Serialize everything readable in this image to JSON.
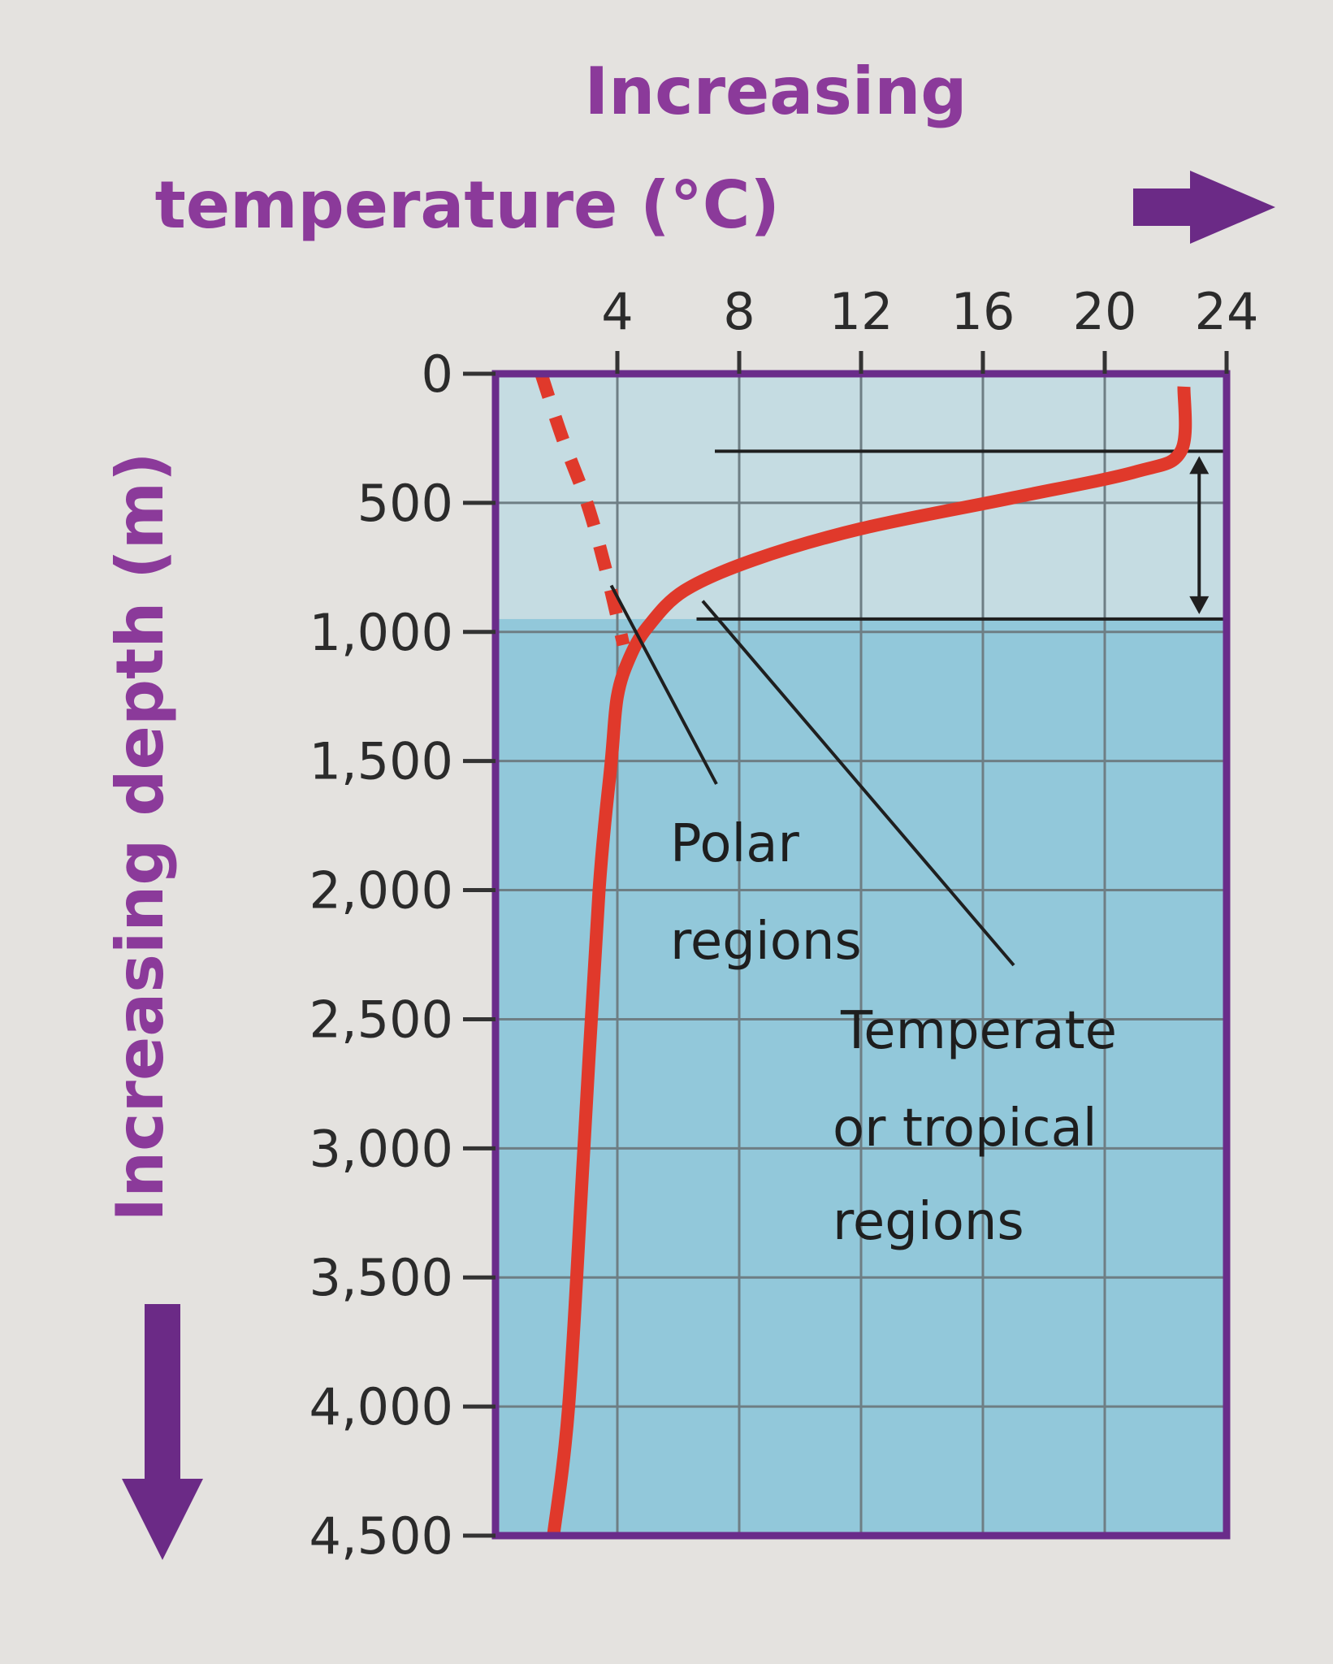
{
  "chart_data": {
    "type": "line",
    "title": "",
    "xlabel_lines": [
      "Increasing",
      "temperature (°C)"
    ],
    "ylabel": "Increasing depth (m)",
    "x_axis_position": "top",
    "y_axis_inverted": true,
    "x_ticks": [
      4,
      8,
      12,
      16,
      20,
      24
    ],
    "x_tick_labels": [
      "4",
      "8",
      "12",
      "16",
      "20",
      "24"
    ],
    "y_ticks": [
      0,
      500,
      1000,
      1500,
      2000,
      2500,
      3000,
      3500,
      4000,
      4500
    ],
    "y_tick_labels": [
      "0",
      "500",
      "1,000",
      "1,500",
      "2,000",
      "2,500",
      "3,000",
      "3,500",
      "4,000",
      "4,500"
    ],
    "xlim": [
      0,
      24
    ],
    "ylim": [
      0,
      4500
    ],
    "grid": true,
    "series": [
      {
        "label_lines": [
          "Temperate",
          "or tropical",
          "regions"
        ],
        "style": "solid",
        "x": [
          22.6,
          22.5,
          21.0,
          17.0,
          12.0,
          8.5,
          6.2,
          5.0,
          4.4,
          4.0,
          3.8,
          3.4,
          2.9,
          2.4,
          1.9
        ],
        "y": [
          50,
          300,
          380,
          480,
          600,
          720,
          840,
          980,
          1100,
          1250,
          1500,
          2000,
          3000,
          4000,
          4500
        ]
      },
      {
        "label_lines": [
          "Polar",
          "regions"
        ],
        "style": "dashed",
        "x": [
          1.5,
          2.2,
          3.0,
          3.6,
          4.2
        ],
        "y": [
          0,
          250,
          500,
          750,
          1050
        ]
      }
    ],
    "thermocline": {
      "top_m": 300,
      "bottom_m": 950
    },
    "colors": {
      "axis_title": "#8b3a9a",
      "arrow": "#6b2a86",
      "frame": "#6a2c8a",
      "line": "#e0392b",
      "shallow_water": "#c5dce2",
      "deep_water": "#92c8da",
      "grid": "#6e7e84",
      "annotation": "#1e1e1e"
    }
  }
}
